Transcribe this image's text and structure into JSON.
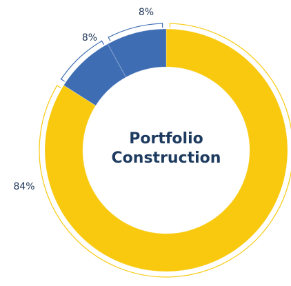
{
  "chart_data": {
    "type": "pie",
    "title": "Portfolio Construction",
    "values": [
      84,
      8,
      8
    ],
    "value_labels": [
      "84%",
      "8%",
      "8%"
    ],
    "colors": [
      "#f8c90e",
      "#3e6db4",
      "#3e6db4"
    ],
    "donut": true
  }
}
